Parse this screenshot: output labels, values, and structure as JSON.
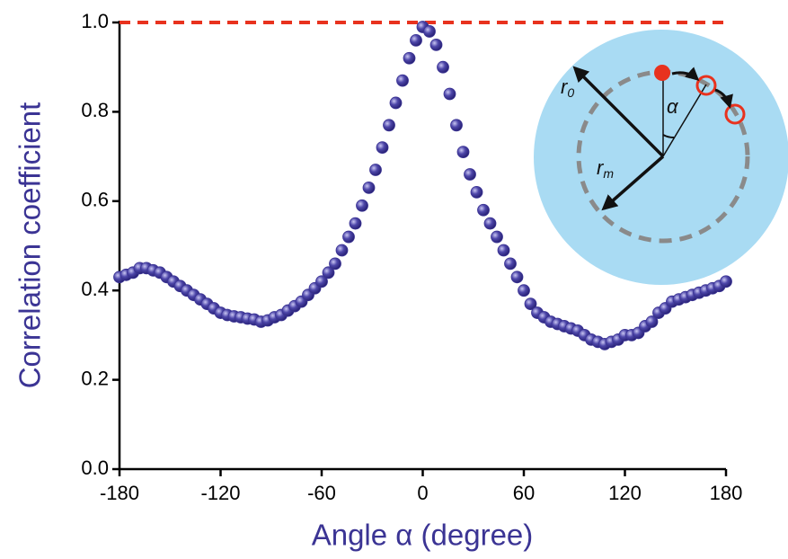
{
  "chart_data": {
    "type": "scatter",
    "x_label": "Angle α (degree)",
    "y_label": "Correlation coefficient",
    "x": [
      -180,
      -176,
      -172,
      -168,
      -164,
      -160,
      -156,
      -152,
      -148,
      -144,
      -140,
      -136,
      -132,
      -128,
      -124,
      -120,
      -116,
      -112,
      -108,
      -104,
      -100,
      -96,
      -92,
      -88,
      -84,
      -80,
      -76,
      -72,
      -68,
      -64,
      -60,
      -56,
      -52,
      -48,
      -44,
      -40,
      -36,
      -32,
      -28,
      -24,
      -20,
      -16,
      -12,
      -8,
      -4,
      0,
      4,
      8,
      12,
      16,
      20,
      24,
      28,
      32,
      36,
      40,
      44,
      48,
      52,
      56,
      60,
      64,
      68,
      72,
      76,
      80,
      84,
      88,
      92,
      96,
      100,
      104,
      108,
      112,
      116,
      120,
      124,
      128,
      132,
      136,
      140,
      144,
      148,
      152,
      156,
      160,
      164,
      168,
      172,
      176,
      180
    ],
    "values": [
      0.43,
      0.435,
      0.44,
      0.45,
      0.45,
      0.445,
      0.44,
      0.43,
      0.42,
      0.41,
      0.4,
      0.39,
      0.38,
      0.37,
      0.36,
      0.35,
      0.345,
      0.342,
      0.34,
      0.337,
      0.335,
      0.33,
      0.333,
      0.34,
      0.345,
      0.355,
      0.365,
      0.375,
      0.39,
      0.405,
      0.42,
      0.44,
      0.46,
      0.49,
      0.52,
      0.55,
      0.59,
      0.63,
      0.67,
      0.72,
      0.77,
      0.82,
      0.87,
      0.92,
      0.96,
      0.99,
      0.98,
      0.95,
      0.9,
      0.84,
      0.77,
      0.71,
      0.66,
      0.62,
      0.58,
      0.55,
      0.52,
      0.49,
      0.46,
      0.43,
      0.4,
      0.37,
      0.35,
      0.34,
      0.33,
      0.325,
      0.32,
      0.315,
      0.31,
      0.3,
      0.29,
      0.285,
      0.28,
      0.285,
      0.29,
      0.3,
      0.3,
      0.305,
      0.32,
      0.33,
      0.35,
      0.36,
      0.375,
      0.38,
      0.385,
      0.39,
      0.395,
      0.4,
      0.405,
      0.41,
      0.42
    ],
    "color": "#3b3494",
    "xlim": [
      -180,
      180
    ],
    "xticks": [
      -180,
      -120,
      -60,
      0,
      60,
      120,
      180
    ],
    "ylim": [
      0,
      1
    ],
    "yticks": [
      {
        "value": 0,
        "label": "0.0"
      },
      {
        "value": 0.2,
        "label": "0.2"
      },
      {
        "value": 0.4,
        "label": "0.4"
      },
      {
        "value": 0.6,
        "label": "0.6"
      },
      {
        "value": 0.8,
        "label": "0.8"
      },
      {
        "value": 1,
        "label": "1.0"
      }
    ],
    "reference_line": 1,
    "reference_color": "#e8321e",
    "inset": {
      "r0": {
        "text": "r",
        "sub": "0"
      },
      "rm": {
        "text": "r",
        "sub": "m"
      },
      "alpha": "α"
    }
  }
}
